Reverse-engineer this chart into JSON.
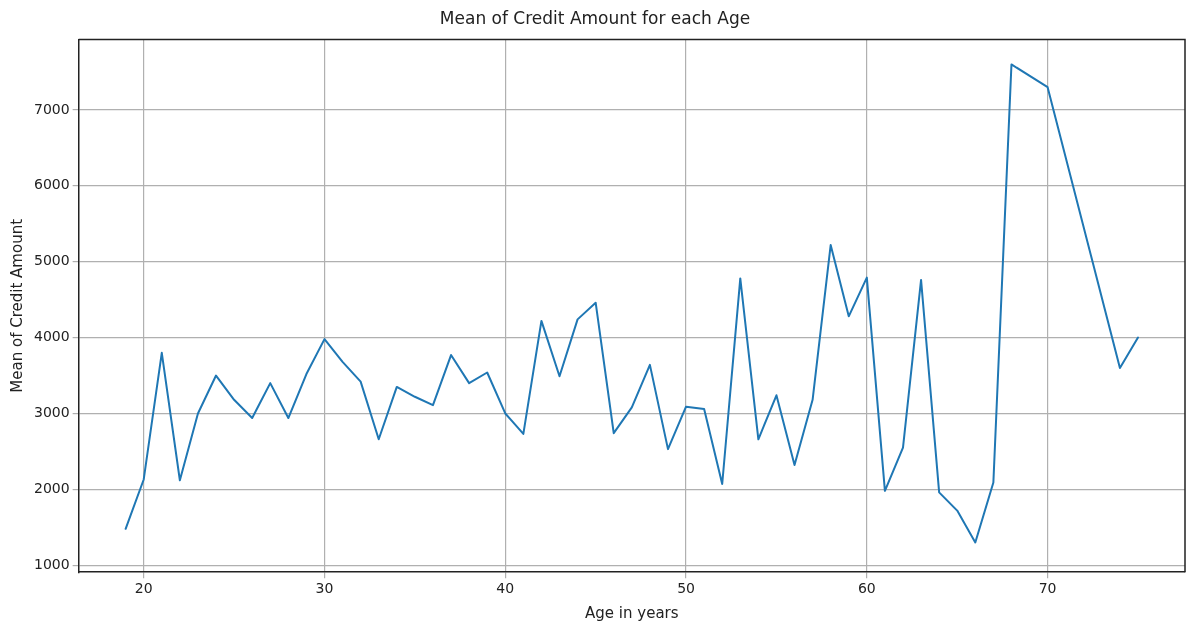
{
  "chart_data": {
    "type": "line",
    "title": "Mean of Credit Amount for each Age",
    "xlabel": "Age in years",
    "ylabel": "Mean of Credit Amount",
    "x": [
      19,
      20,
      21,
      22,
      23,
      24,
      25,
      26,
      27,
      28,
      29,
      30,
      31,
      32,
      33,
      34,
      35,
      36,
      37,
      38,
      39,
      40,
      41,
      42,
      43,
      44,
      45,
      46,
      47,
      48,
      49,
      50,
      51,
      52,
      53,
      54,
      55,
      56,
      57,
      58,
      59,
      60,
      61,
      62,
      63,
      64,
      65,
      66,
      67,
      68,
      70,
      74,
      75
    ],
    "series": [
      {
        "color": "#1f77b4",
        "values": [
          1480,
          2130,
          3800,
          2120,
          3000,
          3500,
          3180,
          2940,
          3400,
          2940,
          3520,
          3980,
          3680,
          3420,
          2660,
          3350,
          3220,
          3110,
          3770,
          3400,
          3540,
          3000,
          2730,
          4220,
          3490,
          4240,
          4460,
          2740,
          3080,
          3640,
          2530,
          3090,
          3060,
          2070,
          4780,
          2660,
          3240,
          2320,
          3180,
          5220,
          4280,
          4790,
          1980,
          2550,
          4760,
          1960,
          1720,
          1300,
          2090,
          7600,
          7300,
          3600,
          4000
        ]
      }
    ],
    "xlim": [
      16.4,
      77.6
    ],
    "ylim": [
      908,
      7930
    ],
    "xticks": [
      20,
      30,
      40,
      50,
      60,
      70
    ],
    "yticks": [
      1000,
      2000,
      3000,
      4000,
      5000,
      6000,
      7000
    ],
    "grid": true,
    "legend": false,
    "marker": "none",
    "line_style": "solid"
  }
}
